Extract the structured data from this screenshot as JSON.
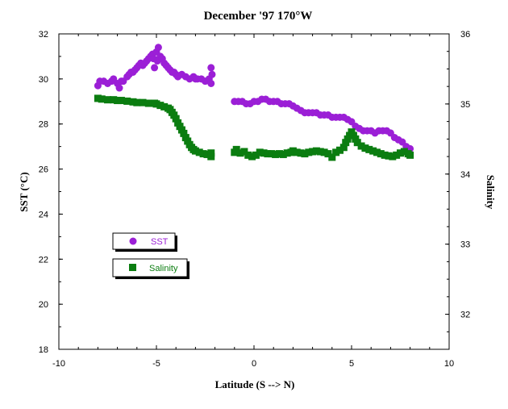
{
  "chart_data": {
    "type": "scatter",
    "title": "December '97 170°W",
    "xlabel": "Latitude (S --> N)",
    "ylabel_left": "SST (°C)",
    "ylabel_right": "Salinity",
    "xlim": [
      -10,
      10
    ],
    "ylim_left": [
      18,
      32
    ],
    "ylim_right": [
      31.5,
      36
    ],
    "x_ticks": [
      -10,
      -5,
      0,
      5,
      10
    ],
    "y_left_ticks": [
      18,
      20,
      22,
      24,
      26,
      28,
      30,
      32
    ],
    "y_right_ticks": [
      32,
      33,
      34,
      35,
      36
    ],
    "grid": false,
    "legend_placement": "center-left",
    "series": [
      {
        "name": "SST",
        "axis": "left",
        "marker": "circle",
        "color": "#9b1fd6",
        "points": [
          [
            -8.0,
            29.7
          ],
          [
            -7.9,
            29.9
          ],
          [
            -7.7,
            29.9
          ],
          [
            -7.5,
            29.8
          ],
          [
            -7.3,
            29.9
          ],
          [
            -7.2,
            30.0
          ],
          [
            -7.0,
            29.8
          ],
          [
            -6.9,
            29.6
          ],
          [
            -6.8,
            29.9
          ],
          [
            -6.7,
            29.9
          ],
          [
            -6.5,
            30.1
          ],
          [
            -6.4,
            30.2
          ],
          [
            -6.3,
            30.3
          ],
          [
            -6.2,
            30.3
          ],
          [
            -6.1,
            30.4
          ],
          [
            -6.0,
            30.5
          ],
          [
            -5.9,
            30.6
          ],
          [
            -5.8,
            30.7
          ],
          [
            -5.7,
            30.6
          ],
          [
            -5.6,
            30.7
          ],
          [
            -5.5,
            30.8
          ],
          [
            -5.4,
            30.9
          ],
          [
            -5.3,
            31.0
          ],
          [
            -5.2,
            31.1
          ],
          [
            -5.15,
            30.9
          ],
          [
            -5.1,
            30.5
          ],
          [
            -5.0,
            31.2
          ],
          [
            -4.95,
            30.8
          ],
          [
            -4.9,
            31.4
          ],
          [
            -4.85,
            30.9
          ],
          [
            -4.8,
            31.0
          ],
          [
            -4.7,
            30.9
          ],
          [
            -4.6,
            30.7
          ],
          [
            -4.5,
            30.6
          ],
          [
            -4.4,
            30.5
          ],
          [
            -4.3,
            30.4
          ],
          [
            -4.2,
            30.3
          ],
          [
            -4.1,
            30.3
          ],
          [
            -4.0,
            30.2
          ],
          [
            -3.9,
            30.1
          ],
          [
            -3.7,
            30.2
          ],
          [
            -3.5,
            30.1
          ],
          [
            -3.3,
            30.0
          ],
          [
            -3.1,
            30.1
          ],
          [
            -3.0,
            30.0
          ],
          [
            -2.9,
            30.0
          ],
          [
            -2.7,
            30.0
          ],
          [
            -2.5,
            29.9
          ],
          [
            -2.3,
            30.0
          ],
          [
            -2.2,
            29.8
          ],
          [
            -2.2,
            30.5
          ],
          [
            -2.15,
            30.2
          ],
          [
            -1.0,
            29.0
          ],
          [
            -0.8,
            29.0
          ],
          [
            -0.6,
            29.0
          ],
          [
            -0.4,
            28.9
          ],
          [
            -0.2,
            28.9
          ],
          [
            0.0,
            29.0
          ],
          [
            0.2,
            29.0
          ],
          [
            0.4,
            29.1
          ],
          [
            0.6,
            29.1
          ],
          [
            0.8,
            29.0
          ],
          [
            1.0,
            29.0
          ],
          [
            1.2,
            29.0
          ],
          [
            1.4,
            28.9
          ],
          [
            1.6,
            28.9
          ],
          [
            1.8,
            28.9
          ],
          [
            2.0,
            28.8
          ],
          [
            2.2,
            28.7
          ],
          [
            2.4,
            28.6
          ],
          [
            2.6,
            28.5
          ],
          [
            2.8,
            28.5
          ],
          [
            3.0,
            28.5
          ],
          [
            3.2,
            28.5
          ],
          [
            3.4,
            28.4
          ],
          [
            3.6,
            28.4
          ],
          [
            3.8,
            28.4
          ],
          [
            4.0,
            28.3
          ],
          [
            4.2,
            28.3
          ],
          [
            4.4,
            28.3
          ],
          [
            4.6,
            28.3
          ],
          [
            4.8,
            28.2
          ],
          [
            5.0,
            28.1
          ],
          [
            5.2,
            27.9
          ],
          [
            5.4,
            27.8
          ],
          [
            5.6,
            27.7
          ],
          [
            5.8,
            27.7
          ],
          [
            6.0,
            27.7
          ],
          [
            6.2,
            27.6
          ],
          [
            6.4,
            27.7
          ],
          [
            6.6,
            27.7
          ],
          [
            6.8,
            27.7
          ],
          [
            7.0,
            27.6
          ],
          [
            7.2,
            27.4
          ],
          [
            7.4,
            27.3
          ],
          [
            7.6,
            27.2
          ],
          [
            7.8,
            27.0
          ],
          [
            8.0,
            26.9
          ]
        ]
      },
      {
        "name": "Salinity",
        "axis": "right",
        "marker": "square",
        "color": "#0b7d10",
        "points": [
          [
            -8.0,
            35.08
          ],
          [
            -7.8,
            35.07
          ],
          [
            -7.5,
            35.06
          ],
          [
            -7.2,
            35.06
          ],
          [
            -7.0,
            35.05
          ],
          [
            -6.8,
            35.05
          ],
          [
            -6.5,
            35.04
          ],
          [
            -6.2,
            35.03
          ],
          [
            -6.0,
            35.02
          ],
          [
            -5.7,
            35.02
          ],
          [
            -5.4,
            35.01
          ],
          [
            -5.1,
            35.01
          ],
          [
            -5.0,
            35.0
          ],
          [
            -4.8,
            34.98
          ],
          [
            -4.6,
            34.96
          ],
          [
            -4.4,
            34.94
          ],
          [
            -4.3,
            34.92
          ],
          [
            -4.2,
            34.88
          ],
          [
            -4.1,
            34.84
          ],
          [
            -4.0,
            34.79
          ],
          [
            -3.9,
            34.73
          ],
          [
            -3.8,
            34.68
          ],
          [
            -3.7,
            34.63
          ],
          [
            -3.6,
            34.58
          ],
          [
            -3.5,
            34.52
          ],
          [
            -3.4,
            34.47
          ],
          [
            -3.3,
            34.42
          ],
          [
            -3.2,
            34.38
          ],
          [
            -3.1,
            34.35
          ],
          [
            -3.0,
            34.33
          ],
          [
            -2.8,
            34.31
          ],
          [
            -2.6,
            34.29
          ],
          [
            -2.4,
            34.28
          ],
          [
            -2.2,
            34.25
          ],
          [
            -2.2,
            34.3
          ],
          [
            -1.0,
            34.31
          ],
          [
            -0.9,
            34.35
          ],
          [
            -0.7,
            34.3
          ],
          [
            -0.5,
            34.32
          ],
          [
            -0.3,
            34.27
          ],
          [
            -0.1,
            34.25
          ],
          [
            0.1,
            34.27
          ],
          [
            0.3,
            34.31
          ],
          [
            0.5,
            34.3
          ],
          [
            0.7,
            34.29
          ],
          [
            0.9,
            34.29
          ],
          [
            1.1,
            34.28
          ],
          [
            1.3,
            34.29
          ],
          [
            1.5,
            34.28
          ],
          [
            1.7,
            34.3
          ],
          [
            1.9,
            34.31
          ],
          [
            2.0,
            34.33
          ],
          [
            2.2,
            34.31
          ],
          [
            2.4,
            34.3
          ],
          [
            2.6,
            34.29
          ],
          [
            2.8,
            34.31
          ],
          [
            3.0,
            34.32
          ],
          [
            3.2,
            34.33
          ],
          [
            3.4,
            34.32
          ],
          [
            3.6,
            34.31
          ],
          [
            3.8,
            34.29
          ],
          [
            4.0,
            34.24
          ],
          [
            4.2,
            34.31
          ],
          [
            4.4,
            34.34
          ],
          [
            4.6,
            34.38
          ],
          [
            4.7,
            34.45
          ],
          [
            4.8,
            34.5
          ],
          [
            4.9,
            34.55
          ],
          [
            5.0,
            34.6
          ],
          [
            5.1,
            34.55
          ],
          [
            5.2,
            34.5
          ],
          [
            5.3,
            34.45
          ],
          [
            5.5,
            34.4
          ],
          [
            5.7,
            34.37
          ],
          [
            5.9,
            34.35
          ],
          [
            6.1,
            34.33
          ],
          [
            6.3,
            34.31
          ],
          [
            6.5,
            34.29
          ],
          [
            6.7,
            34.27
          ],
          [
            6.9,
            34.26
          ],
          [
            7.1,
            34.25
          ],
          [
            7.3,
            34.27
          ],
          [
            7.5,
            34.3
          ],
          [
            7.7,
            34.32
          ],
          [
            7.9,
            34.29
          ],
          [
            8.0,
            34.27
          ]
        ]
      }
    ]
  }
}
